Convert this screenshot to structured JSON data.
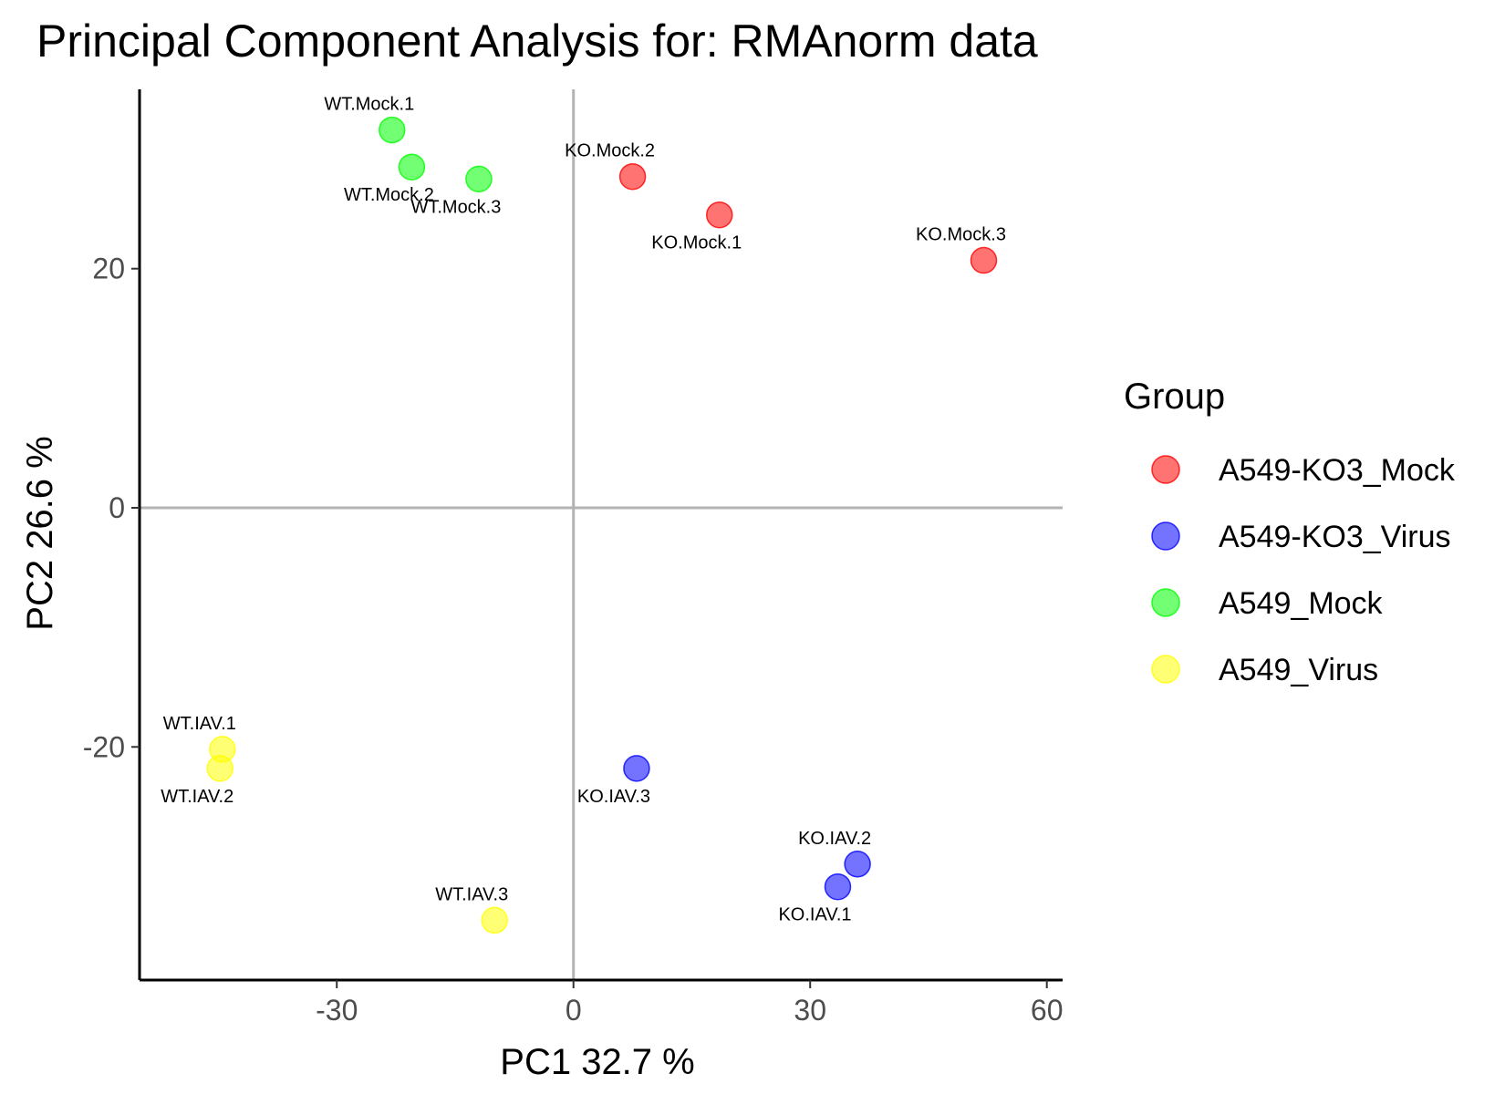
{
  "chart_data": {
    "type": "scatter",
    "title": "Principal Component Analysis for:  RMAnorm data",
    "xlabel": "PC1 32.7 %",
    "ylabel": "PC2 26.6 %",
    "xlim": [
      -55,
      62
    ],
    "ylim": [
      -39.5,
      35
    ],
    "xticks": [
      -30,
      0,
      30,
      60
    ],
    "xtick_labels": [
      "-30",
      "0",
      "30",
      "60"
    ],
    "yticks": [
      -20,
      0,
      20
    ],
    "ytick_labels": [
      "-20",
      "0",
      "20"
    ],
    "reference_lines": {
      "x": 0,
      "y": 0
    },
    "grid": false,
    "legend": {
      "title": "Group",
      "placement": "right",
      "entries": [
        {
          "label": "A549-KO3_Mock",
          "color": "#ff0000"
        },
        {
          "label": "A549-KO3_Virus",
          "color": "#0000ff"
        },
        {
          "label": "A549_Mock",
          "color": "#00ff00"
        },
        {
          "label": "A549_Virus",
          "color": "#ffff00"
        }
      ]
    },
    "series": [
      {
        "name": "A549-KO3_Mock",
        "color": "#ff0000",
        "points": [
          {
            "label": "KO.Mock.1",
            "x": 18.5,
            "y": 24.5,
            "label_pos": "below"
          },
          {
            "label": "KO.Mock.2",
            "x": 7.5,
            "y": 27.7,
            "label_pos": "above"
          },
          {
            "label": "KO.Mock.3",
            "x": 52.0,
            "y": 20.7,
            "label_pos": "above"
          }
        ]
      },
      {
        "name": "A549-KO3_Virus",
        "color": "#0000ff",
        "points": [
          {
            "label": "KO.IAV.1",
            "x": 33.5,
            "y": -31.7,
            "label_pos": "below"
          },
          {
            "label": "KO.IAV.2",
            "x": 36.0,
            "y": -29.8,
            "label_pos": "above"
          },
          {
            "label": "KO.IAV.3",
            "x": 8.0,
            "y": -21.8,
            "label_pos": "below"
          }
        ]
      },
      {
        "name": "A549_Mock",
        "color": "#00ff00",
        "points": [
          {
            "label": "WT.Mock.1",
            "x": -23.0,
            "y": 31.6,
            "label_pos": "above"
          },
          {
            "label": "WT.Mock.2",
            "x": -20.5,
            "y": 28.5,
            "label_pos": "below"
          },
          {
            "label": "WT.Mock.3",
            "x": -12.0,
            "y": 27.5,
            "label_pos": "below"
          }
        ]
      },
      {
        "name": "A549_Virus",
        "color": "#ffff00",
        "points": [
          {
            "label": "WT.IAV.1",
            "x": -44.5,
            "y": -20.2,
            "label_pos": "above"
          },
          {
            "label": "WT.IAV.2",
            "x": -44.8,
            "y": -21.8,
            "label_pos": "below"
          },
          {
            "label": "WT.IAV.3",
            "x": -10.0,
            "y": -34.5,
            "label_pos": "above"
          }
        ]
      }
    ]
  }
}
